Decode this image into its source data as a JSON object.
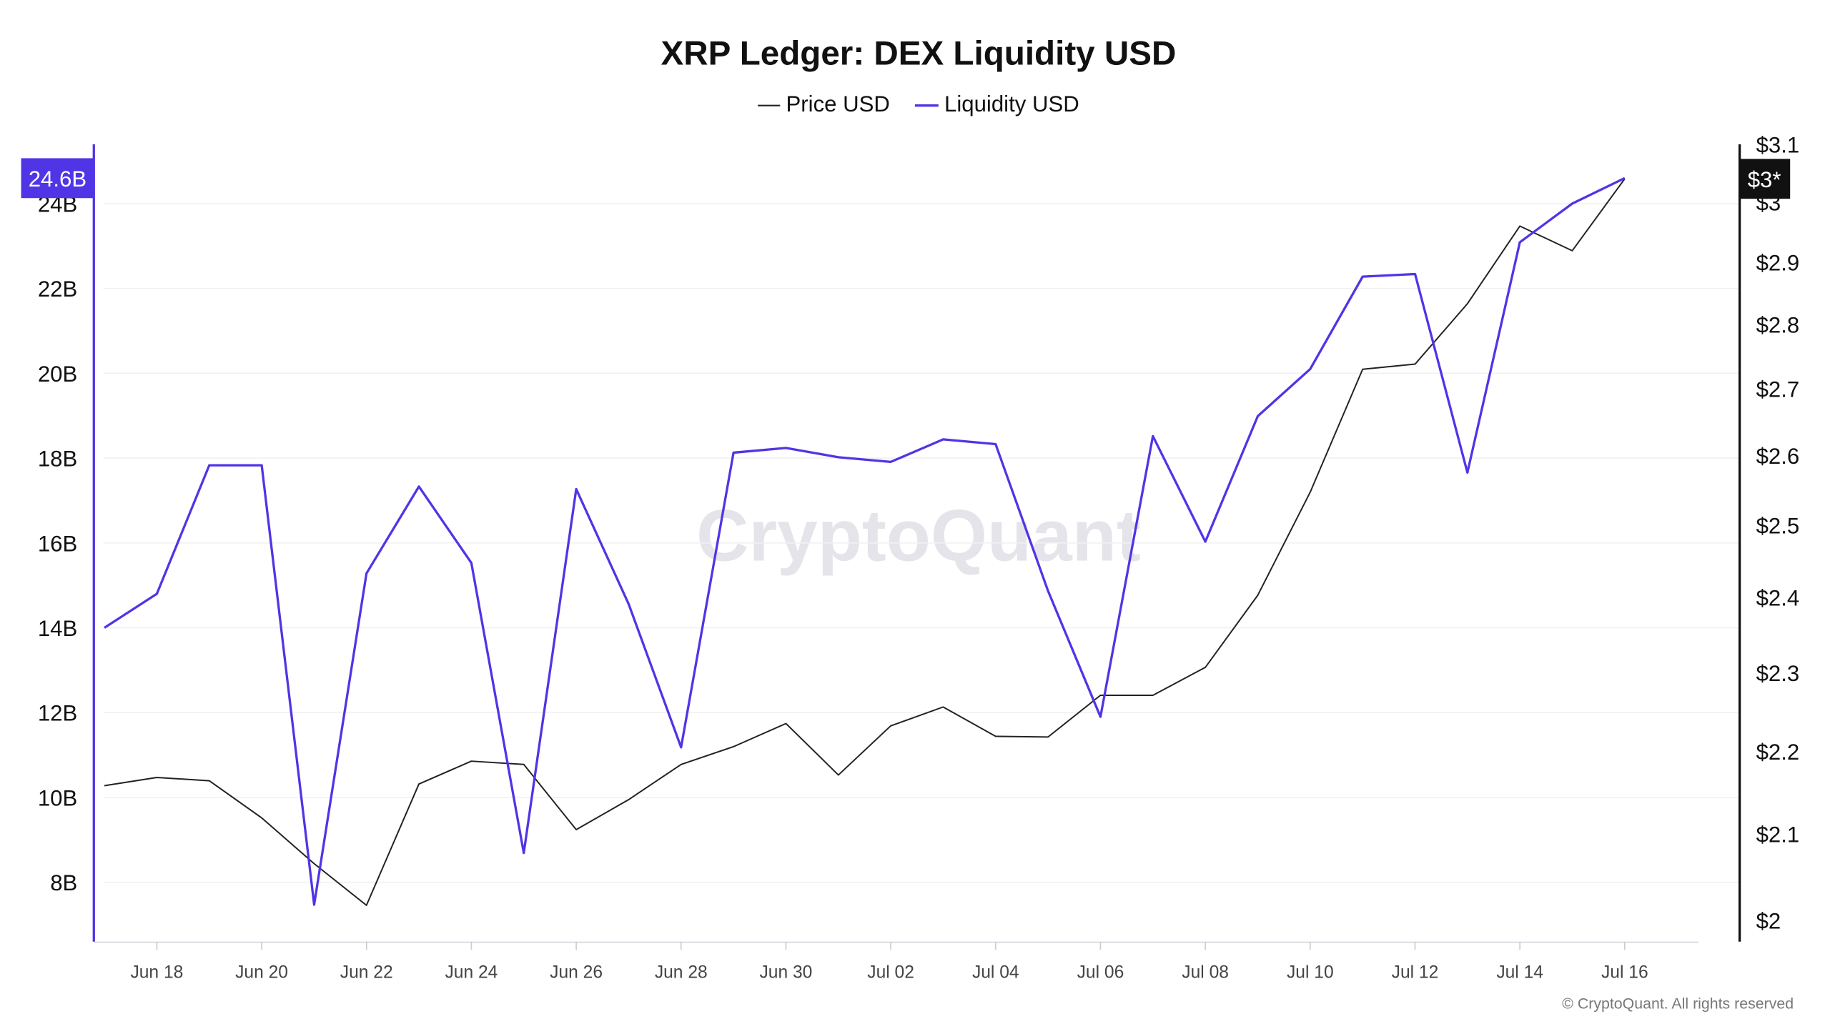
{
  "chart_data": {
    "type": "line",
    "title": "XRP Ledger: DEX Liquidity USD",
    "legend_placement": "top-center",
    "watermark": "CryptoQuant",
    "copyright": "© CryptoQuant. All rights reserved",
    "x": [
      "Jun 17",
      "Jun 18",
      "Jun 19",
      "Jun 20",
      "Jun 21",
      "Jun 22",
      "Jun 23",
      "Jun 24",
      "Jun 25",
      "Jun 26",
      "Jun 27",
      "Jun 28",
      "Jun 29",
      "Jun 30",
      "Jul 01",
      "Jul 02",
      "Jul 03",
      "Jul 04",
      "Jul 05",
      "Jul 06",
      "Jul 07",
      "Jul 08",
      "Jul 09",
      "Jul 10",
      "Jul 11",
      "Jul 12",
      "Jul 13",
      "Jul 14",
      "Jul 15",
      "Jul 16"
    ],
    "x_ticks": [
      "Jun 18",
      "Jun 20",
      "Jun 22",
      "Jun 24",
      "Jun 26",
      "Jun 28",
      "Jun 30",
      "Jul 02",
      "Jul 04",
      "Jul 06",
      "Jul 08",
      "Jul 10",
      "Jul 12",
      "Jul 14",
      "Jul 16"
    ],
    "y_left": {
      "ticks": [
        "8B",
        "10B",
        "12B",
        "14B",
        "16B",
        "18B",
        "20B",
        "22B",
        "24B"
      ],
      "tick_values": [
        8,
        10,
        12,
        14,
        16,
        18,
        20,
        22,
        24
      ],
      "range": [
        6.6,
        25.4
      ],
      "unit": "B USD",
      "scale": "linear"
    },
    "y_right": {
      "ticks": [
        "$2",
        "$2.1",
        "$2.2",
        "$2.3",
        "$2.4",
        "$2.5",
        "$2.6",
        "$2.7",
        "$2.8",
        "$2.9",
        "$3",
        "$3.1"
      ],
      "tick_values": [
        2,
        2.1,
        2.2,
        2.3,
        2.4,
        2.5,
        2.6,
        2.7,
        2.8,
        2.9,
        3,
        3.1
      ],
      "range": [
        1.976,
        3.1
      ],
      "scale": "log"
    },
    "grid": "horizontal",
    "series": [
      {
        "name": "Price USD",
        "axis": "right",
        "color": "#222222",
        "values": [
          2.158,
          2.168,
          2.164,
          2.119,
          2.065,
          2.017,
          2.16,
          2.188,
          2.184,
          2.105,
          2.141,
          2.184,
          2.206,
          2.235,
          2.171,
          2.232,
          2.256,
          2.219,
          2.218,
          2.271,
          2.271,
          2.307,
          2.403,
          2.547,
          2.73,
          2.738,
          2.833,
          2.96,
          2.919,
          3.04
        ],
        "last_label": "$3*"
      },
      {
        "name": "Liquidity USD",
        "axis": "left",
        "color": "#4f35e6",
        "values": [
          14.0,
          14.8,
          17.83,
          17.83,
          7.47,
          15.28,
          17.33,
          15.53,
          8.69,
          17.27,
          14.56,
          11.18,
          18.13,
          18.24,
          18.02,
          17.91,
          18.44,
          18.33,
          14.87,
          11.9,
          18.52,
          16.03,
          18.99,
          20.1,
          22.28,
          22.34,
          17.66,
          23.09,
          24.0,
          24.6
        ],
        "last_label": "24.6B"
      }
    ]
  }
}
